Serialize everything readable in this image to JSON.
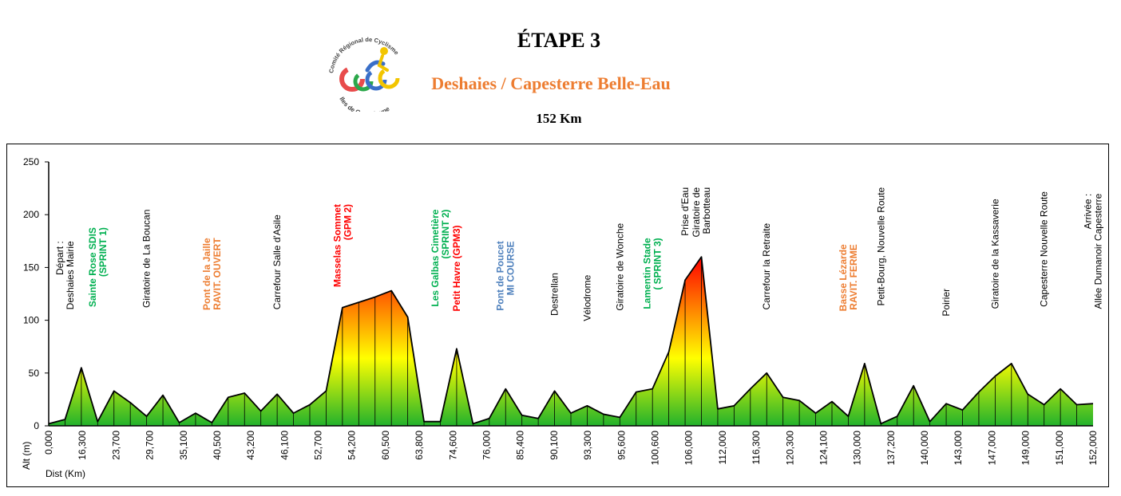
{
  "header": {
    "title": "ÉTAPE 3",
    "subtitle": "Deshaies / Capesterre Belle-Eau",
    "distance": "152 Km",
    "logo": {
      "top_text": "Comité Régional de Cyclisme",
      "bottom_text": "Iles de Guadeloupe",
      "letters": "CRCIG"
    }
  },
  "colors": {
    "title": "#000000",
    "subtitle": "#ED7D31",
    "label_black": "#000000",
    "label_green": "#00B050",
    "label_orange": "#ED7D31",
    "label_red": "#FF0000",
    "label_blue": "#4F81BD",
    "fill_low": "#22B22C",
    "fill_mid": "#FFFF00",
    "fill_high": "#FF0000"
  },
  "chart_data": {
    "type": "area",
    "title": "",
    "xlabel": "Dist (Km)",
    "ylabel": "Alt (m)",
    "ylim": [
      0,
      250
    ],
    "yticks": [
      0,
      50,
      100,
      150,
      200,
      250
    ],
    "grid": false,
    "legend": "none",
    "x_tick_labels": [
      "0,000",
      "16,300",
      "23,700",
      "29,700",
      "35,100",
      "40,500",
      "43,200",
      "46,100",
      "52,700",
      "54,200",
      "60,500",
      "63,800",
      "74,600",
      "76,000",
      "85,400",
      "90,100",
      "93,300",
      "95,600",
      "100,600",
      "106,000",
      "112,000",
      "116,300",
      "120,300",
      "124,100",
      "130,000",
      "137,200",
      "140,000",
      "143,000",
      "147,000",
      "149,000",
      "151,000",
      "152,000"
    ],
    "altitudes": [
      2,
      6,
      55,
      4,
      33,
      22,
      9,
      29,
      3,
      12,
      3,
      27,
      31,
      14,
      30,
      12,
      20,
      33,
      112,
      117,
      122,
      128,
      103,
      4,
      4,
      73,
      2,
      7,
      35,
      10,
      7,
      33,
      12,
      19,
      11,
      8,
      32,
      35,
      70,
      138,
      160,
      16,
      19,
      35,
      50,
      27,
      24,
      12,
      23,
      9,
      59,
      2,
      9,
      38,
      4,
      21,
      15,
      32,
      47,
      59,
      30,
      20,
      35,
      20,
      21
    ],
    "annotations": [
      {
        "idx": 1,
        "lines": [
          "Départ :",
          "Deshaies Mairie"
        ],
        "color": "black",
        "bold": false,
        "y_top": 175
      },
      {
        "idx": 3,
        "lines": [
          "Sainte Rose SDIS",
          "(SPRINT 1)"
        ],
        "color": "green",
        "bold": true,
        "y_top": 188
      },
      {
        "idx": 6,
        "lines": [
          "Giratoire de La  Boucan"
        ],
        "color": "black",
        "bold": false,
        "y_top": 205
      },
      {
        "idx": 10,
        "lines": [
          "Pont de la Jaille",
          "RAVIT. OUVERT"
        ],
        "color": "orange",
        "bold": true,
        "y_top": 178
      },
      {
        "idx": 14,
        "lines": [
          "Carrefour Salle d'Asile"
        ],
        "color": "black",
        "bold": false,
        "y_top": 200
      },
      {
        "idx": 18,
        "lines": [
          "Masselas Sommet",
          "(GPM 2)"
        ],
        "color": "red",
        "bold": true,
        "y_top": 210
      },
      {
        "idx": 24,
        "lines": [
          "Les Galbas Cimetière",
          "(SPRINT 2)"
        ],
        "color": "green",
        "bold": true,
        "y_top": 205
      },
      {
        "idx": 25,
        "lines": [
          "Petit Havre (GPM3)"
        ],
        "color": "red",
        "bold": true,
        "y_top": 190
      },
      {
        "idx": 28,
        "lines": [
          "Pont de Poucet",
          "MI COURSE"
        ],
        "color": "blue",
        "bold": true,
        "y_top": 175
      },
      {
        "idx": 31,
        "lines": [
          "Destrellan"
        ],
        "color": "black",
        "bold": false,
        "y_top": 145
      },
      {
        "idx": 33,
        "lines": [
          "Vélodrome"
        ],
        "color": "black",
        "bold": false,
        "y_top": 143
      },
      {
        "idx": 35,
        "lines": [
          "Giratoire de Wonche"
        ],
        "color": "black",
        "bold": false,
        "y_top": 192
      },
      {
        "idx": 37,
        "lines": [
          "Lamentin Stade",
          "( SPRINT 3)"
        ],
        "color": "green",
        "bold": true,
        "y_top": 178
      },
      {
        "idx": 39,
        "lines": [
          "Prise d'Eau"
        ],
        "color": "black",
        "bold": false,
        "y_top": 226
      },
      {
        "idx": 40,
        "lines": [
          "Giratoire de",
          "Barbotteau"
        ],
        "color": "black",
        "bold": false,
        "y_top": 226
      },
      {
        "idx": 44,
        "lines": [
          "Carrefour la Retraite"
        ],
        "color": "black",
        "bold": false,
        "y_top": 192
      },
      {
        "idx": 49,
        "lines": [
          "Basse Lézarde",
          "RAVIT. FERME"
        ],
        "color": "orange",
        "bold": true,
        "y_top": 172
      },
      {
        "idx": 51,
        "lines": [
          "Petit-Bourg, Nouvelle Route"
        ],
        "color": "black",
        "bold": false,
        "y_top": 226
      },
      {
        "idx": 55,
        "lines": [
          "Poirier"
        ],
        "color": "black",
        "bold": false,
        "y_top": 130
      },
      {
        "idx": 58,
        "lines": [
          "Giratoire de la Kassaverie"
        ],
        "color": "black",
        "bold": false,
        "y_top": 215
      },
      {
        "idx": 61,
        "lines": [
          "Capesterre Nouvelle Route"
        ],
        "color": "black",
        "bold": false,
        "y_top": 222
      },
      {
        "idx": 64,
        "lines": [
          "Arrivée :",
          "Allée Dumanoir Capesterre"
        ],
        "color": "black",
        "bold": false,
        "y_top": 220
      }
    ]
  }
}
